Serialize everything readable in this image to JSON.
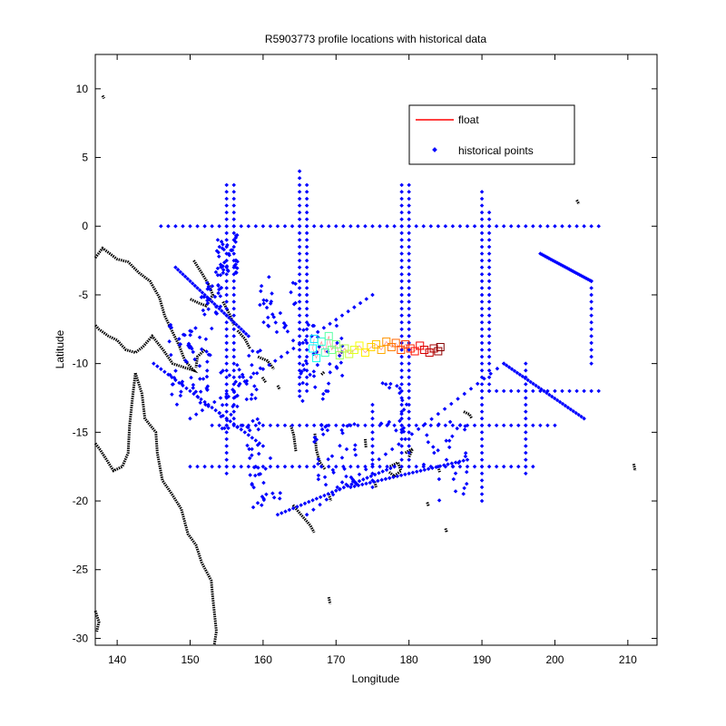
{
  "chart_data": {
    "type": "scatter",
    "title": "R5903773 profile locations with historical data",
    "xlabel": "Longitude",
    "ylabel": "Latitude",
    "xlim": [
      137,
      214
    ],
    "ylim": [
      -30.5,
      12.5
    ],
    "xticks": [
      140,
      150,
      160,
      170,
      180,
      190,
      200,
      210
    ],
    "yticks": [
      10,
      5,
      0,
      -5,
      -10,
      -15,
      -20,
      -25,
      -30
    ],
    "grid": false,
    "legend": {
      "placement": "top-right",
      "entries": [
        {
          "label": "float",
          "color": "#ff0000",
          "marker": "line"
        },
        {
          "label": "historical points",
          "color": "#0000ff",
          "marker": "dot"
        }
      ]
    },
    "series": [
      {
        "name": "historical points",
        "color": "#0000ff",
        "tracks": [
          {
            "lat": 0,
            "lon": [
              146,
              206
            ],
            "step": 1
          },
          {
            "lon": 165,
            "lat": [
              -12,
              4
            ],
            "step": 0.5
          },
          {
            "lon": 166,
            "lat": [
              -12,
              3
            ],
            "step": 0.5
          },
          {
            "lon": 179,
            "lat": [
              -17,
              3
            ],
            "step": 0.5
          },
          {
            "lon": 180,
            "lat": [
              -17,
              3
            ],
            "step": 0.5
          },
          {
            "lon": 190,
            "lat": [
              -20,
              2.5
            ],
            "step": 0.5
          },
          {
            "lon": 191,
            "lat": [
              -12,
              1
            ],
            "step": 0.5
          },
          {
            "lon": 155,
            "lat": [
              -18,
              3
            ],
            "step": 0.5
          },
          {
            "lon": 156,
            "lat": [
              -14,
              3
            ],
            "step": 0.5
          },
          {
            "lat": -14.5,
            "lon": [
              153,
              200
            ],
            "step": 1
          },
          {
            "lat": -17.5,
            "lon": [
              150,
              197
            ],
            "step": 1
          },
          {
            "lat": -12,
            "lon": [
              190,
              206
            ],
            "step": 1
          },
          {
            "lon": 205,
            "lat": [
              -10,
              -4
            ],
            "step": 0.5
          },
          {
            "lon": 196,
            "lat": [
              -18,
              -10
            ],
            "step": 0.5
          },
          {
            "lon": 175,
            "lat": [
              -19,
              -13
            ],
            "step": 0.5
          }
        ],
        "segments": [
          {
            "from": [
              166,
              -21
            ],
            "to": [
              193,
              -10
            ]
          },
          {
            "from": [
              193,
              -10
            ],
            "to": [
              204,
              -14
            ]
          },
          {
            "from": [
              150,
              -14
            ],
            "to": [
              175,
              -5
            ]
          },
          {
            "from": [
              162,
              -21
            ],
            "to": [
              178,
              -17.5
            ]
          },
          {
            "from": [
              172,
              -19
            ],
            "to": [
              188,
              -17
            ]
          },
          {
            "from": [
              198,
              -2
            ],
            "to": [
              205,
              -4
            ]
          },
          {
            "from": [
              148,
              -3
            ],
            "to": [
              158,
              -8
            ]
          },
          {
            "from": [
              145,
              -10
            ],
            "to": [
              160,
              -16
            ]
          }
        ],
        "clusters": [
          {
            "lon": 155,
            "lat": -2,
            "spread": 1.5,
            "n": 40
          },
          {
            "lon": 153,
            "lat": -5,
            "spread": 1.5,
            "n": 30
          },
          {
            "lon": 150,
            "lat": -10,
            "spread": 3,
            "n": 60
          },
          {
            "lon": 157,
            "lat": -12,
            "spread": 3,
            "n": 50
          },
          {
            "lon": 162,
            "lat": -6,
            "spread": 2.5,
            "n": 30
          },
          {
            "lon": 168,
            "lat": -10,
            "spread": 3,
            "n": 40
          },
          {
            "lon": 170,
            "lat": -17,
            "spread": 3,
            "n": 40
          },
          {
            "lon": 185,
            "lat": -17,
            "spread": 3,
            "n": 30
          },
          {
            "lon": 160,
            "lat": -18,
            "spread": 2.5,
            "n": 30
          },
          {
            "lon": 178,
            "lat": -13,
            "spread": 2,
            "n": 20
          }
        ]
      },
      {
        "name": "float",
        "color_scale": "jet",
        "marker": "square",
        "points": [
          [
            167.0,
            -8.2
          ],
          [
            166.8,
            -8.9
          ],
          [
            167.3,
            -9.6
          ],
          [
            168.0,
            -8.4
          ],
          [
            168.5,
            -9.2
          ],
          [
            169.0,
            -8.0
          ],
          [
            169.4,
            -9.0
          ],
          [
            170.0,
            -8.6
          ],
          [
            170.5,
            -9.4
          ],
          [
            171.2,
            -8.9
          ],
          [
            171.8,
            -9.3
          ],
          [
            172.5,
            -9.0
          ],
          [
            173.2,
            -8.7
          ],
          [
            174.0,
            -9.2
          ],
          [
            174.8,
            -8.8
          ],
          [
            175.5,
            -8.6
          ],
          [
            176.2,
            -9.0
          ],
          [
            176.9,
            -8.4
          ],
          [
            177.6,
            -8.8
          ],
          [
            178.2,
            -8.5
          ],
          [
            178.9,
            -9.0
          ],
          [
            179.5,
            -8.6
          ],
          [
            180.2,
            -8.9
          ],
          [
            180.8,
            -9.1
          ],
          [
            181.5,
            -8.7
          ],
          [
            182.1,
            -9.0
          ],
          [
            182.8,
            -9.2
          ],
          [
            183.4,
            -8.9
          ],
          [
            184.0,
            -9.1
          ],
          [
            184.3,
            -8.8
          ]
        ]
      },
      {
        "name": "coastline",
        "color": "#000000",
        "lines": [
          [
            [
              137,
              -2.3
            ],
            [
              138,
              -1.6
            ],
            [
              140,
              -2.4
            ],
            [
              141.5,
              -2.6
            ],
            [
              143,
              -3.4
            ],
            [
              144.5,
              -4
            ],
            [
              145.8,
              -5.2
            ],
            [
              146.5,
              -6.5
            ],
            [
              147.4,
              -7.5
            ],
            [
              148.5,
              -8.7
            ],
            [
              149.3,
              -9.8
            ],
            [
              150.5,
              -10.5
            ],
            [
              149.3,
              -10.3
            ],
            [
              147.6,
              -10.0
            ],
            [
              146.3,
              -9.0
            ],
            [
              144.8,
              -8.0
            ],
            [
              143.5,
              -8.8
            ],
            [
              142.5,
              -9.2
            ],
            [
              141.2,
              -9.0
            ],
            [
              140.0,
              -8.3
            ],
            [
              138.8,
              -8.0
            ],
            [
              137.5,
              -7.5
            ],
            [
              137,
              -7.2
            ]
          ],
          [
            [
              142.5,
              -10.7
            ],
            [
              142.1,
              -12.5
            ],
            [
              141.7,
              -14.5
            ],
            [
              141.5,
              -16.5
            ],
            [
              140.7,
              -17.5
            ],
            [
              139.5,
              -17.8
            ],
            [
              138.3,
              -16.8
            ],
            [
              137.7,
              -16.3
            ],
            [
              137,
              -15.8
            ]
          ],
          [
            [
              142.5,
              -10.7
            ],
            [
              143.4,
              -12.2
            ],
            [
              143.8,
              -14.0
            ],
            [
              145.3,
              -15.0
            ],
            [
              145.5,
              -16.5
            ],
            [
              146.2,
              -18.5
            ],
            [
              147.5,
              -19.5
            ],
            [
              148.8,
              -20.6
            ],
            [
              149.7,
              -22.4
            ],
            [
              150.8,
              -23.2
            ],
            [
              151.6,
              -24.5
            ],
            [
              152.9,
              -25.8
            ],
            [
              153.1,
              -27.0
            ],
            [
              153.4,
              -28.5
            ],
            [
              153.6,
              -29.5
            ],
            [
              153.3,
              -30.5
            ]
          ],
          [
            [
              150.5,
              -2.5
            ],
            [
              151.7,
              -3.5
            ],
            [
              152.6,
              -4.3
            ],
            [
              153.1,
              -5.0
            ],
            [
              152.2,
              -5.8
            ],
            [
              151.2,
              -5.6
            ],
            [
              150.0,
              -5.3
            ]
          ],
          [
            [
              154.5,
              -5.5
            ],
            [
              155.5,
              -6.5
            ],
            [
              156.0,
              -7.2
            ]
          ],
          [
            [
              156.5,
              -7.6
            ],
            [
              157.5,
              -8.2
            ],
            [
              158.2,
              -8.9
            ]
          ],
          [
            [
              159.3,
              -9.5
            ],
            [
              160.6,
              -9.8
            ],
            [
              161.5,
              -10.4
            ]
          ],
          [
            [
              163.8,
              -14.5
            ],
            [
              164.2,
              -15.2
            ],
            [
              164.5,
              -16.4
            ]
          ],
          [
            [
              167.1,
              -15.1
            ],
            [
              167.3,
              -16.3
            ],
            [
              167.8,
              -17.2
            ],
            [
              168.5,
              -17.7
            ]
          ],
          [
            [
              164.1,
              -20.3
            ],
            [
              165.2,
              -21.0
            ],
            [
              166.5,
              -21.8
            ],
            [
              167.0,
              -22.3
            ]
          ],
          [
            [
              177.4,
              -17.5
            ],
            [
              178.5,
              -17.2
            ],
            [
              178.9,
              -17.8
            ],
            [
              178.0,
              -18.2
            ],
            [
              177.3,
              -17.9
            ]
          ],
          [
            [
              179.5,
              -16.5
            ],
            [
              180.5,
              -16.2
            ],
            [
              180.0,
              -16.8
            ]
          ],
          [
            [
              187.5,
              -13.5
            ],
            [
              188.3,
              -13.7
            ],
            [
              188.6,
              -14.0
            ]
          ],
          [
            [
              138.0,
              9.5
            ],
            [
              138.2,
              9.3
            ]
          ],
          [
            [
              203.0,
              1.9
            ],
            [
              203.3,
              1.6
            ]
          ],
          [
            [
              210.8,
              -17.3
            ],
            [
              211.0,
              -17.8
            ]
          ],
          [
            [
              137.0,
              -28.0
            ],
            [
              137.5,
              -28.8
            ],
            [
              137.2,
              -29.5
            ]
          ],
          [
            [
              152.0,
              -9.0
            ],
            [
              151.0,
              -9.5
            ],
            [
              150.8,
              -10.3
            ]
          ],
          [
            [
              169.0,
              -19.5
            ],
            [
              169.3,
              -20.0
            ]
          ],
          [
            [
              168.0,
              -10.8
            ],
            [
              168.4,
              -10.6
            ]
          ],
          [
            [
              159.9,
              -11.0
            ],
            [
              160.4,
              -11.4
            ]
          ],
          [
            [
              162.0,
              -11.6
            ],
            [
              162.3,
              -11.9
            ]
          ],
          [
            [
              175.3,
              -18.6
            ],
            [
              175.5,
              -19.0
            ]
          ],
          [
            [
              185.0,
              -22.0
            ],
            [
              185.2,
              -22.3
            ]
          ],
          [
            [
              182.5,
              -20.1
            ],
            [
              182.7,
              -20.4
            ]
          ],
          [
            [
              184.0,
              -17.5
            ],
            [
              184.2,
              -17.9
            ]
          ],
          [
            [
              174.0,
              -15.5
            ],
            [
              174.1,
              -16.1
            ]
          ],
          [
            [
              169.0,
              -27.0
            ],
            [
              169.2,
              -27.5
            ]
          ]
        ]
      }
    ]
  }
}
